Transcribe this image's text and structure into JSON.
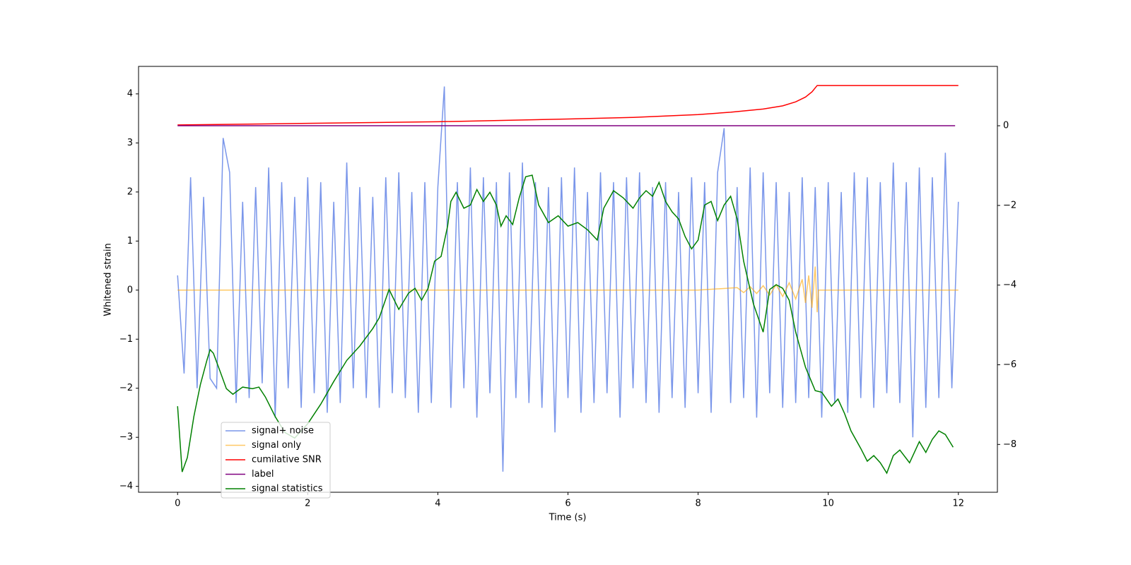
{
  "chart_data": {
    "type": "line",
    "xlabel": "Time (s)",
    "ylabel": "Whitened strain",
    "xlim": [
      -0.6,
      12.6
    ],
    "ylim": [
      -4.12,
      4.56
    ],
    "y2lim": [
      -9.2,
      1.49
    ],
    "xticks": [
      0,
      2,
      4,
      6,
      8,
      10,
      12
    ],
    "yticks": [
      {
        "value": -4,
        "label": "−4"
      },
      {
        "value": -3,
        "label": "−3"
      },
      {
        "value": -2,
        "label": "−2"
      },
      {
        "value": -1,
        "label": "−1"
      },
      0,
      1,
      2,
      3,
      4
    ],
    "y2ticks": [
      {
        "value": -8,
        "label": "−8"
      },
      {
        "value": -6,
        "label": "−6"
      },
      {
        "value": -4,
        "label": "−4"
      },
      {
        "value": -2,
        "label": "−2"
      },
      0
    ],
    "grid": false,
    "legend_loc": "lower left",
    "series": [
      {
        "name": "signal+ noise",
        "color": "#4169e1",
        "opacity": 0.7,
        "x": [
          0,
          0.1,
          0.2,
          0.3,
          0.4,
          0.5,
          0.6,
          0.7,
          0.8,
          0.9,
          1,
          1.1,
          1.2,
          1.3,
          1.4,
          1.5,
          1.6,
          1.7,
          1.8,
          1.9,
          2,
          2.1,
          2.2,
          2.3,
          2.4,
          2.5,
          2.6,
          2.7,
          2.8,
          2.9,
          3,
          3.1,
          3.2,
          3.3,
          3.4,
          3.5,
          3.6,
          3.7,
          3.8,
          3.9,
          4,
          4.1,
          4.2,
          4.3,
          4.4,
          4.5,
          4.6,
          4.7,
          4.8,
          4.9,
          5,
          5.1,
          5.2,
          5.3,
          5.4,
          5.5,
          5.6,
          5.7,
          5.8,
          5.9,
          6,
          6.1,
          6.2,
          6.3,
          6.4,
          6.5,
          6.6,
          6.7,
          6.8,
          6.9,
          7,
          7.1,
          7.2,
          7.3,
          7.4,
          7.5,
          7.6,
          7.7,
          7.8,
          7.9,
          8,
          8.1,
          8.2,
          8.3,
          8.4,
          8.5,
          8.6,
          8.7,
          8.8,
          8.9,
          9,
          9.1,
          9.2,
          9.3,
          9.4,
          9.5,
          9.6,
          9.7,
          9.8,
          9.9,
          10,
          10.1,
          10.2,
          10.3,
          10.4,
          10.5,
          10.6,
          10.7,
          10.8,
          10.9,
          11,
          11.1,
          11.2,
          11.3,
          11.4,
          11.5,
          11.6,
          11.7,
          11.8,
          11.9,
          12
        ],
        "values": [
          0.3,
          -1.7,
          2.3,
          -2.0,
          1.9,
          -1.8,
          -2.0,
          3.1,
          2.4,
          -2.3,
          1.8,
          -2.2,
          2.1,
          -1.9,
          2.5,
          -2.6,
          2.2,
          -2.0,
          1.9,
          -2.4,
          2.3,
          -2.1,
          2.2,
          -2.5,
          1.8,
          -2.3,
          2.6,
          -2.0,
          2.1,
          -2.2,
          1.9,
          -2.4,
          2.3,
          -2.1,
          2.4,
          -2.2,
          2.0,
          -2.5,
          2.2,
          -2.3,
          2.1,
          4.15,
          -2.4,
          2.2,
          -2.0,
          2.5,
          -2.6,
          2.3,
          -2.1,
          2.2,
          -3.7,
          2.4,
          -2.2,
          2.6,
          -2.3,
          2.2,
          -2.4,
          2.1,
          -2.9,
          2.3,
          -2.2,
          2.5,
          -2.5,
          2.0,
          -2.3,
          2.4,
          -2.1,
          2.2,
          -2.6,
          2.3,
          -2.0,
          2.4,
          -2.3,
          2.1,
          -2.5,
          2.2,
          -2.2,
          2.0,
          -2.4,
          2.3,
          -2.1,
          2.2,
          -2.5,
          2.4,
          3.3,
          -2.3,
          2.1,
          -2.2,
          2.5,
          -2.6,
          2.4,
          -2.1,
          2.2,
          -2.4,
          2.0,
          -2.3,
          2.3,
          -2.2,
          2.1,
          -2.6,
          2.2,
          -2.3,
          2.0,
          -2.5,
          2.4,
          -2.2,
          2.3,
          -2.4,
          2.2,
          -2.1,
          2.6,
          -2.3,
          2.2,
          -3.0,
          2.5,
          -2.4,
          2.3,
          -2.2,
          2.8,
          -2.0,
          1.8
        ]
      },
      {
        "name": "signal only",
        "color": "#ffa500",
        "opacity": 0.6,
        "x": [
          0,
          8.0,
          8.6,
          8.7,
          8.8,
          8.9,
          9.0,
          9.1,
          9.2,
          9.3,
          9.4,
          9.5,
          9.6,
          9.65,
          9.7,
          9.75,
          9.8,
          9.83,
          9.85,
          12
        ],
        "values": [
          0,
          0,
          0.05,
          -0.05,
          0.07,
          -0.07,
          0.09,
          -0.1,
          0.11,
          -0.13,
          0.15,
          -0.18,
          0.22,
          -0.26,
          0.3,
          -0.36,
          0.48,
          -0.45,
          0,
          0
        ]
      },
      {
        "name": "cumilative SNR",
        "color": "#ff0000",
        "axis": "y2",
        "x": [
          0,
          2,
          4,
          6,
          7,
          8,
          8.5,
          9,
          9.3,
          9.5,
          9.65,
          9.75,
          9.83,
          12
        ],
        "values": [
          0.02,
          0.06,
          0.1,
          0.17,
          0.21,
          0.28,
          0.34,
          0.42,
          0.5,
          0.6,
          0.72,
          0.85,
          1.01,
          1.01
        ]
      },
      {
        "name": "label",
        "color": "#800080",
        "axis": "y2",
        "x": [
          0,
          11.95
        ],
        "values": [
          0,
          0
        ]
      },
      {
        "name": "signal statistics",
        "color": "#008000",
        "axis": "y2",
        "x": [
          0,
          0.07,
          0.15,
          0.25,
          0.35,
          0.45,
          0.5,
          0.55,
          0.65,
          0.75,
          0.85,
          1.0,
          1.15,
          1.25,
          1.35,
          1.5,
          1.65,
          1.8,
          2.0,
          2.2,
          2.4,
          2.6,
          2.8,
          3.0,
          3.1,
          3.25,
          3.4,
          3.55,
          3.65,
          3.75,
          3.85,
          3.95,
          4.05,
          4.15,
          4.2,
          4.28,
          4.4,
          4.5,
          4.6,
          4.7,
          4.8,
          4.9,
          4.97,
          5.05,
          5.15,
          5.25,
          5.35,
          5.45,
          5.55,
          5.7,
          5.85,
          6.0,
          6.15,
          6.3,
          6.45,
          6.55,
          6.7,
          6.85,
          7.0,
          7.1,
          7.2,
          7.3,
          7.4,
          7.5,
          7.6,
          7.7,
          7.8,
          7.9,
          8.0,
          8.1,
          8.2,
          8.3,
          8.4,
          8.5,
          8.6,
          8.7,
          8.85,
          9.0,
          9.1,
          9.2,
          9.3,
          9.4,
          9.5,
          9.65,
          9.8,
          9.9,
          10.05,
          10.15,
          10.25,
          10.35,
          10.5,
          10.6,
          10.7,
          10.8,
          10.9,
          11.0,
          11.1,
          11.25,
          11.4,
          11.5,
          11.6,
          11.7,
          11.8,
          11.92
        ],
        "values": [
          -7.04,
          -8.69,
          -8.33,
          -7.3,
          -6.5,
          -5.89,
          -5.62,
          -5.71,
          -6.15,
          -6.6,
          -6.74,
          -6.56,
          -6.6,
          -6.56,
          -6.81,
          -7.3,
          -7.7,
          -7.84,
          -7.48,
          -6.99,
          -6.42,
          -5.89,
          -5.53,
          -5.09,
          -4.82,
          -4.11,
          -4.61,
          -4.2,
          -4.08,
          -4.38,
          -4.08,
          -3.4,
          -3.28,
          -2.52,
          -1.9,
          -1.67,
          -2.07,
          -1.99,
          -1.6,
          -1.9,
          -1.67,
          -1.99,
          -2.52,
          -2.26,
          -2.48,
          -1.81,
          -1.28,
          -1.24,
          -1.99,
          -2.43,
          -2.26,
          -2.52,
          -2.43,
          -2.61,
          -2.87,
          -2.07,
          -1.63,
          -1.81,
          -2.07,
          -1.81,
          -1.63,
          -1.77,
          -1.42,
          -1.9,
          -2.16,
          -2.34,
          -2.78,
          -3.09,
          -2.87,
          -1.99,
          -1.9,
          -2.38,
          -1.99,
          -1.77,
          -2.34,
          -3.4,
          -4.47,
          -5.18,
          -4.11,
          -3.99,
          -4.08,
          -4.38,
          -5.18,
          -6.06,
          -6.65,
          -6.69,
          -7.04,
          -6.86,
          -7.22,
          -7.66,
          -8.1,
          -8.42,
          -8.28,
          -8.46,
          -8.72,
          -8.28,
          -8.14,
          -8.46,
          -7.93,
          -8.2,
          -7.87,
          -7.66,
          -7.75,
          -8.07
        ]
      }
    ]
  }
}
